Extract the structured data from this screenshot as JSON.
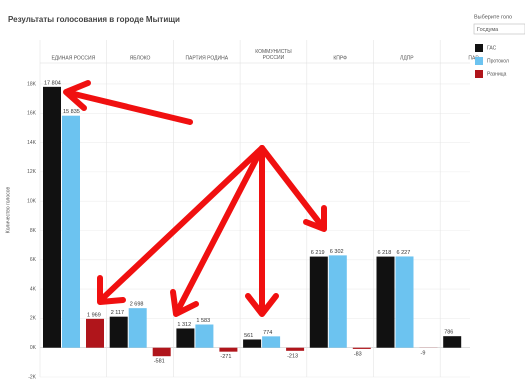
{
  "chart_data": {
    "type": "bar",
    "title": "Результаты голосования в городе Мытищи",
    "y_label": "Количество голосов",
    "selector_label": "Выберите голо",
    "selector_value": "Госдума",
    "categories": [
      "ЕДИНАЯ РОССИЯ",
      "ЯБЛОКО",
      "ПАРТИЯ РОДИНА",
      "КОММУНИСТЫ РОССИИ",
      "КПРФ",
      "ЛДПР",
      "ПАР"
    ],
    "series": [
      {
        "name": "ГАС",
        "color": "#111111",
        "values": [
          17804,
          2117,
          1312,
          561,
          6219,
          6218,
          786
        ],
        "value_labels": [
          "17 804",
          "2 117",
          "1 312",
          "561",
          "6 219",
          "6 218",
          "786"
        ]
      },
      {
        "name": "Протокол",
        "color": "#6cc3f0",
        "values": [
          15835,
          2698,
          1583,
          774,
          6302,
          6227,
          null
        ],
        "value_labels": [
          "15 835",
          "2 698",
          "1 583",
          "774",
          "6 302",
          "6 227",
          null
        ]
      },
      {
        "name": "Разница",
        "color": "#b0151b",
        "values": [
          1969,
          -581,
          -271,
          -213,
          -83,
          -9,
          null
        ],
        "value_labels": [
          "1 969",
          "-581",
          "-271",
          "-213",
          "-83",
          "-9",
          null
        ]
      }
    ],
    "ylim": [
      -2000,
      19500
    ],
    "yticks": [
      {
        "value": -2000,
        "label": "-2K"
      },
      {
        "value": 0,
        "label": "0K"
      },
      {
        "value": 2000,
        "label": "2K"
      },
      {
        "value": 4000,
        "label": "4K"
      },
      {
        "value": 6000,
        "label": "6K"
      },
      {
        "value": 8000,
        "label": "8K"
      },
      {
        "value": 10000,
        "label": "10K"
      },
      {
        "value": 12000,
        "label": "12K"
      },
      {
        "value": 14000,
        "label": "14K"
      },
      {
        "value": 16000,
        "label": "16K"
      },
      {
        "value": 18000,
        "label": "18K"
      }
    ],
    "grid": true
  }
}
